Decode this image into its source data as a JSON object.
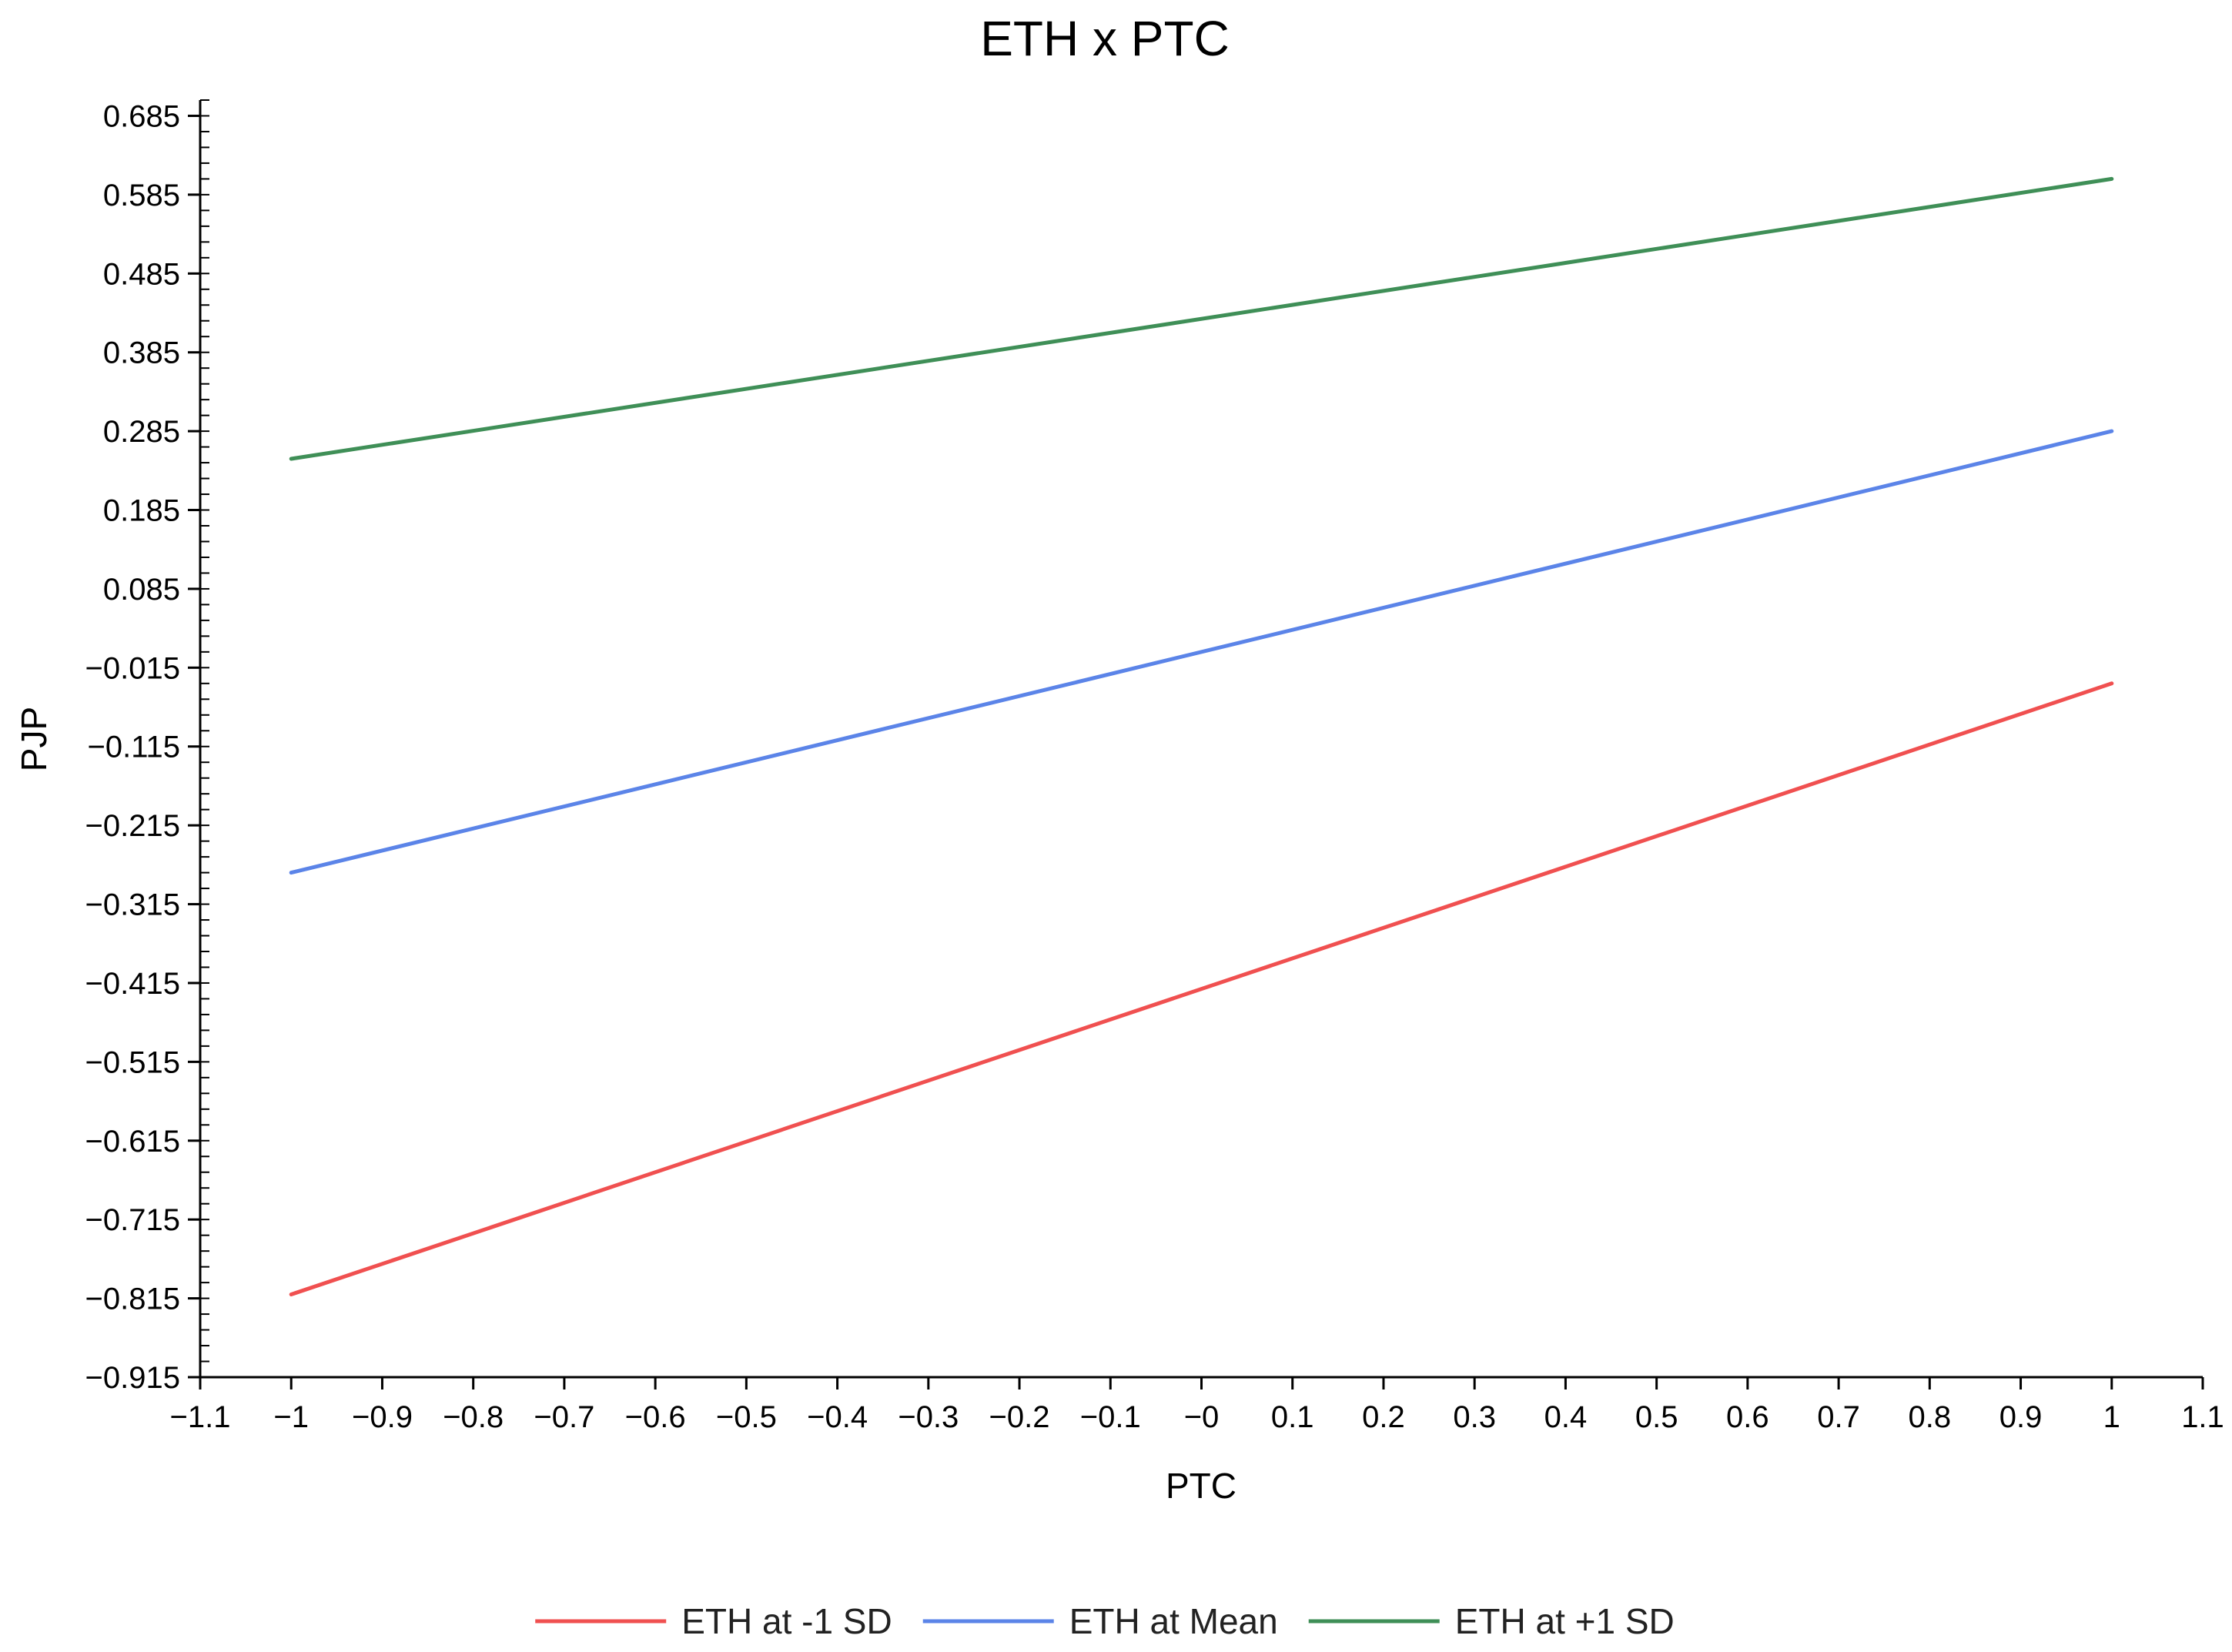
{
  "chart_data": {
    "type": "line",
    "title": "ETH x PTC",
    "xlabel": "PTC",
    "ylabel": "PJP",
    "xlim": [
      -1.1,
      1.1
    ],
    "ylim": [
      -0.915,
      0.705
    ],
    "x_ticks": [
      -1.1,
      -1,
      -0.9,
      -0.8,
      -0.7,
      -0.6,
      -0.5,
      -0.4,
      -0.3,
      -0.2,
      -0.1,
      0,
      0.1,
      0.2,
      0.3,
      0.4,
      0.5,
      0.6,
      0.7,
      0.8,
      0.9,
      1,
      1.1
    ],
    "x_tick_labels": [
      "−1.1",
      "−1",
      "−0.9",
      "−0.8",
      "−0.7",
      "−0.6",
      "−0.5",
      "−0.4",
      "−0.3",
      "−0.2",
      "−0.1",
      "−0",
      "0.1",
      "0.2",
      "0.3",
      "0.4",
      "0.5",
      "0.6",
      "0.7",
      "0.8",
      "0.9",
      "1",
      "1.1"
    ],
    "y_ticks": [
      0.685,
      0.585,
      0.485,
      0.385,
      0.285,
      0.185,
      0.085,
      -0.015,
      -0.115,
      -0.215,
      -0.315,
      -0.415,
      -0.515,
      -0.615,
      -0.715,
      -0.815,
      -0.915
    ],
    "y_tick_labels": [
      "0.685",
      "0.585",
      "0.485",
      "0.385",
      "0.285",
      "0.185",
      "0.085",
      "−0.015",
      "−0.115",
      "−0.215",
      "−0.315",
      "−0.415",
      "−0.515",
      "−0.615",
      "−0.715",
      "−0.815",
      "−0.915"
    ],
    "y_minor_step": 0.02,
    "grid": false,
    "legend_position": "bottom",
    "series": [
      {
        "name": "ETH at -1 SD",
        "color": "#f05050",
        "x": [
          -1,
          1
        ],
        "y": [
          -0.81,
          -0.035
        ]
      },
      {
        "name": "ETH at Mean",
        "color": "#5b84e8",
        "x": [
          -1,
          1
        ],
        "y": [
          -0.275,
          0.285
        ]
      },
      {
        "name": "ETH at +1 SD",
        "color": "#3f8f57",
        "x": [
          -1,
          1
        ],
        "y": [
          0.25,
          0.605
        ]
      }
    ]
  }
}
